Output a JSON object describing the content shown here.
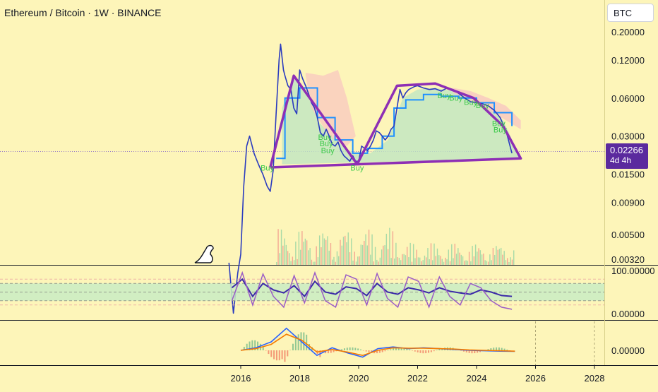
{
  "header": {
    "title": "Ethereum / Bitcoin · 1W · BINANCE",
    "currency": "BTC"
  },
  "price_label": {
    "value": "0.02266",
    "countdown": "4d 4h"
  },
  "colors": {
    "background": "#fdf5b9",
    "candle": "#2a3bbf",
    "pattern": "#8e2fb5",
    "cloud_green": "#bfe6c2",
    "cloud_red": "#f8c7c0",
    "kijun": "#1e90ff",
    "buy_text": "#3cc94a",
    "rsi_line": "#3b2aa8",
    "rsi_signal": "#9a5cc6",
    "macd_line": "#2962ff",
    "macd_signal": "#f57c00",
    "volume_up": "#9fd7a5",
    "volume_down": "#f2a08f"
  },
  "chart_data": [
    {
      "type": "line",
      "scale": "log",
      "y_ticks": [
        "0.20000",
        "0.12000",
        "0.06000",
        "0.03000",
        "0.01500",
        "0.00900",
        "0.00500",
        "0.00320"
      ],
      "x_ticks": [
        "2016",
        "2018",
        "2020",
        "2022",
        "2024",
        "2026",
        "2028"
      ],
      "xlim": [
        2015.5,
        2028.2
      ],
      "x": [
        2015.6,
        2015.75,
        2015.9,
        2016.0,
        2016.1,
        2016.2,
        2016.3,
        2016.45,
        2016.6,
        2016.75,
        2016.9,
        2017.0,
        2017.1,
        2017.2,
        2017.3,
        2017.35,
        2017.45,
        2017.5,
        2017.6,
        2017.7,
        2017.8,
        2017.9,
        2018.0,
        2018.1,
        2018.2,
        2018.3,
        2018.4,
        2018.5,
        2018.6,
        2018.7,
        2018.8,
        2018.9,
        2019.0,
        2019.1,
        2019.2,
        2019.3,
        2019.4,
        2019.5,
        2019.6,
        2019.7,
        2019.8,
        2019.9,
        2020.0,
        2020.1,
        2020.2,
        2020.3,
        2020.4,
        2020.5,
        2020.6,
        2020.7,
        2020.8,
        2020.9,
        2021.0,
        2021.1,
        2021.2,
        2021.3,
        2021.4,
        2021.5,
        2021.6,
        2021.7,
        2021.8,
        2021.9,
        2022.0,
        2022.2,
        2022.4,
        2022.6,
        2022.8,
        2023.0,
        2023.2,
        2023.4,
        2023.6,
        2023.8,
        2024.0,
        2024.2,
        2024.4,
        2024.6,
        2024.8,
        2025.0,
        2025.2
      ],
      "y": [
        0.003,
        0.0012,
        0.0025,
        0.0035,
        0.012,
        0.025,
        0.03,
        0.022,
        0.018,
        0.015,
        0.012,
        0.011,
        0.016,
        0.045,
        0.12,
        0.16,
        0.1,
        0.09,
        0.075,
        0.07,
        0.05,
        0.045,
        0.1,
        0.085,
        0.075,
        0.065,
        0.055,
        0.05,
        0.042,
        0.032,
        0.03,
        0.034,
        0.03,
        0.026,
        0.025,
        0.027,
        0.023,
        0.021,
        0.02,
        0.019,
        0.021,
        0.019,
        0.019,
        0.025,
        0.024,
        0.023,
        0.025,
        0.028,
        0.033,
        0.032,
        0.03,
        0.028,
        0.03,
        0.034,
        0.036,
        0.05,
        0.07,
        0.06,
        0.066,
        0.07,
        0.072,
        0.074,
        0.075,
        0.072,
        0.07,
        0.071,
        0.068,
        0.072,
        0.07,
        0.065,
        0.06,
        0.056,
        0.055,
        0.054,
        0.052,
        0.048,
        0.042,
        0.033,
        0.022
      ],
      "pattern": {
        "x": [
          2017.0,
          2017.8,
          2019.95,
          2021.3,
          2022.6,
          2023.9,
          2024.9,
          2025.5,
          2017.0
        ],
        "y": [
          0.017,
          0.09,
          0.018,
          0.075,
          0.078,
          0.06,
          0.036,
          0.02,
          0.017
        ]
      },
      "annotations": [
        {
          "text": "Buy",
          "x": 2016.9,
          "y": 0.016
        },
        {
          "text": "Buy",
          "x": 2018.85,
          "y": 0.028
        },
        {
          "text": "Buy",
          "x": 2018.9,
          "y": 0.025
        },
        {
          "text": "Buy",
          "x": 2018.95,
          "y": 0.022
        },
        {
          "text": "Buy",
          "x": 2019.95,
          "y": 0.016
        },
        {
          "text": "Buy",
          "x": 2022.9,
          "y": 0.06
        },
        {
          "text": "Buy",
          "x": 2023.3,
          "y": 0.057
        },
        {
          "text": "Buy",
          "x": 2023.8,
          "y": 0.053
        },
        {
          "text": "Buy",
          "x": 2024.2,
          "y": 0.05
        },
        {
          "text": "Buy",
          "x": 2024.75,
          "y": 0.036
        },
        {
          "text": "Buy",
          "x": 2024.8,
          "y": 0.032
        }
      ]
    },
    {
      "type": "line",
      "y_ticks": [
        "100.00000",
        "0.00000"
      ],
      "ylim": [
        0,
        100
      ],
      "series": [
        {
          "values": [
            60,
            80,
            40,
            70,
            55,
            48,
            65,
            40,
            75,
            50,
            45,
            62,
            58,
            42,
            70,
            50,
            45,
            60,
            55,
            48,
            60,
            52,
            48,
            45,
            55,
            50,
            42,
            40
          ]
        },
        {
          "values": [
            30,
            95,
            20,
            92,
            40,
            15,
            88,
            25,
            95,
            30,
            15,
            90,
            80,
            20,
            93,
            35,
            15,
            85,
            75,
            15,
            85,
            40,
            20,
            70,
            60,
            30,
            15,
            10
          ]
        }
      ]
    },
    {
      "type": "line",
      "y_ticks": [
        "0.00000"
      ],
      "series": [
        {
          "values": [
            0,
            0.3,
            1.0,
            2.6,
            1.0,
            -0.6,
            0.3,
            -0.3,
            -0.8,
            0.2,
            0.4,
            0.2,
            0.3,
            0.2,
            0.1,
            0.0,
            -0.05,
            -0.1,
            -0.12
          ]
        },
        {
          "values": [
            0,
            0.2,
            0.7,
            1.9,
            1.2,
            -0.2,
            0.1,
            -0.2,
            -0.6,
            0.0,
            0.3,
            0.25,
            0.25,
            0.2,
            0.15,
            0.05,
            0.0,
            -0.05,
            -0.1
          ]
        }
      ]
    }
  ]
}
